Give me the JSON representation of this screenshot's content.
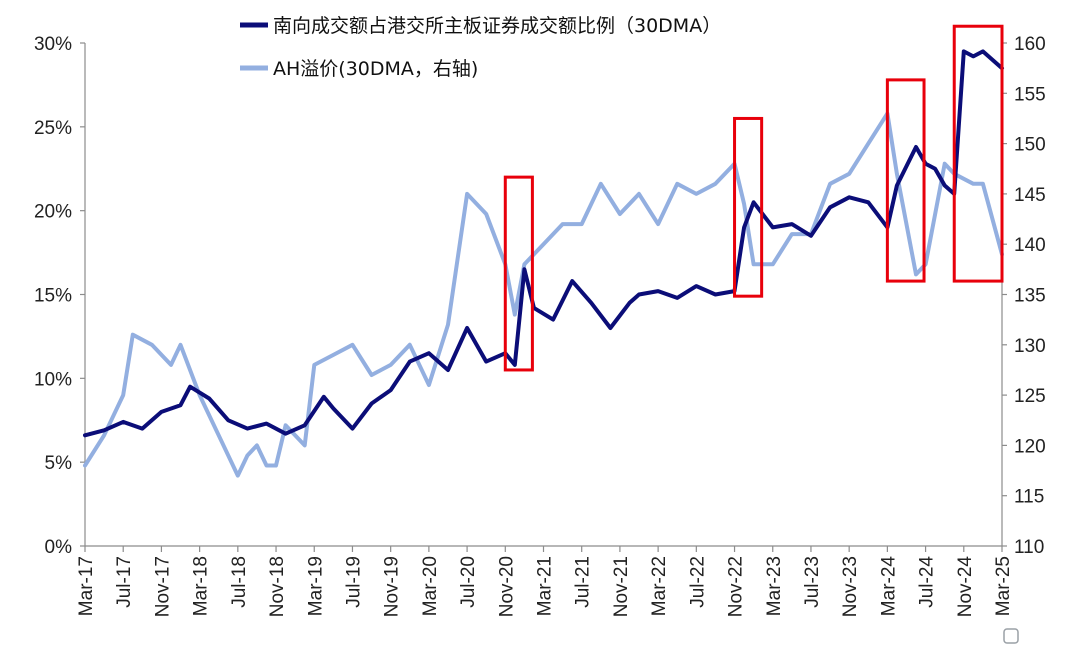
{
  "chart_data": {
    "type": "line",
    "x_tick_labels": [
      "Mar-17",
      "Jul-17",
      "Nov-17",
      "Mar-18",
      "Jul-18",
      "Nov-18",
      "Mar-19",
      "Jul-19",
      "Nov-19",
      "Mar-20",
      "Jul-20",
      "Nov-20",
      "Mar-21",
      "Jul-21",
      "Nov-21",
      "Mar-22",
      "Jul-22",
      "Nov-22",
      "Mar-23",
      "Jul-23",
      "Nov-23",
      "Mar-24",
      "Jul-24",
      "Nov-24",
      "Mar-25"
    ],
    "y_left": {
      "min": 0,
      "max": 30,
      "ticks": [
        0,
        5,
        10,
        15,
        20,
        25,
        30
      ],
      "tick_labels": [
        "0%",
        "5%",
        "10%",
        "15%",
        "20%",
        "25%",
        "30%"
      ]
    },
    "y_right": {
      "min": 110,
      "max": 160,
      "ticks": [
        110,
        115,
        120,
        125,
        130,
        135,
        140,
        145,
        150,
        155,
        160
      ],
      "tick_labels": [
        "110",
        "115",
        "120",
        "125",
        "130",
        "135",
        "140",
        "145",
        "150",
        "155",
        "160"
      ]
    },
    "grid": false,
    "legend_position": "top-center",
    "series": [
      {
        "name": "南向成交额占港交所主板证券成交额比例（30DMA）",
        "axis": "left",
        "color": "#0b0d78",
        "x": [
          "2017-03",
          "2017-05",
          "2017-07",
          "2017-09",
          "2017-11",
          "2018-01",
          "2018-02",
          "2018-04",
          "2018-06",
          "2018-08",
          "2018-10",
          "2018-12",
          "2019-02",
          "2019-04",
          "2019-05",
          "2019-07",
          "2019-09",
          "2019-11",
          "2020-01",
          "2020-03",
          "2020-05",
          "2020-07",
          "2020-09",
          "2020-11",
          "2020-12",
          "2021-01",
          "2021-02",
          "2021-04",
          "2021-06",
          "2021-08",
          "2021-10",
          "2021-12",
          "2022-01",
          "2022-03",
          "2022-05",
          "2022-07",
          "2022-09",
          "2022-11",
          "2022-12",
          "2023-01",
          "2023-03",
          "2023-05",
          "2023-07",
          "2023-09",
          "2023-11",
          "2024-01",
          "2024-03",
          "2024-04",
          "2024-06",
          "2024-07",
          "2024-08",
          "2024-09",
          "2024-10",
          "2024-11",
          "2024-12",
          "2025-01",
          "2025-03"
        ],
        "values": [
          6.6,
          6.9,
          7.4,
          7.0,
          8.0,
          8.4,
          9.5,
          8.8,
          7.5,
          7.0,
          7.3,
          6.7,
          7.2,
          8.9,
          8.2,
          7.0,
          8.5,
          9.3,
          11.0,
          11.5,
          10.5,
          13.0,
          11.0,
          11.5,
          10.8,
          16.5,
          14.2,
          13.5,
          15.8,
          14.5,
          13.0,
          14.5,
          15.0,
          15.2,
          14.8,
          15.5,
          15.0,
          15.2,
          19.0,
          20.5,
          19.0,
          19.2,
          18.5,
          20.2,
          20.8,
          20.5,
          19.0,
          21.5,
          23.8,
          22.8,
          22.5,
          21.5,
          21.0,
          29.5,
          29.2,
          29.5,
          28.5
        ]
      },
      {
        "name": "AH溢价(30DMA，右轴)",
        "axis": "right",
        "color": "#93afe0",
        "x": [
          "2017-03",
          "2017-05",
          "2017-07",
          "2017-08",
          "2017-10",
          "2017-12",
          "2018-01",
          "2018-03",
          "2018-05",
          "2018-07",
          "2018-08",
          "2018-09",
          "2018-10",
          "2018-11",
          "2018-12",
          "2019-02",
          "2019-03",
          "2019-05",
          "2019-07",
          "2019-09",
          "2019-11",
          "2020-01",
          "2020-03",
          "2020-05",
          "2020-07",
          "2020-09",
          "2020-11",
          "2020-12",
          "2021-01",
          "2021-03",
          "2021-05",
          "2021-07",
          "2021-09",
          "2021-11",
          "2022-01",
          "2022-03",
          "2022-05",
          "2022-07",
          "2022-09",
          "2022-11",
          "2022-12",
          "2023-01",
          "2023-03",
          "2023-05",
          "2023-07",
          "2023-09",
          "2023-11",
          "2024-01",
          "2024-03",
          "2024-04",
          "2024-06",
          "2024-07",
          "2024-09",
          "2024-10",
          "2024-12",
          "2025-01",
          "2025-03"
        ],
        "values": [
          118,
          121,
          125,
          131,
          130,
          128,
          130,
          125,
          121,
          117,
          119,
          120,
          118,
          118,
          122,
          120,
          128,
          129,
          130,
          127,
          128,
          130,
          126,
          132,
          145,
          143,
          138,
          133,
          138,
          140,
          142,
          142,
          146,
          143,
          145,
          142,
          146,
          145,
          146,
          148,
          144,
          138,
          138,
          141,
          141,
          146,
          147,
          150,
          153,
          147,
          137,
          138,
          148,
          147,
          146,
          146,
          139
        ]
      }
    ]
  },
  "highlight_boxes_label": ""
}
